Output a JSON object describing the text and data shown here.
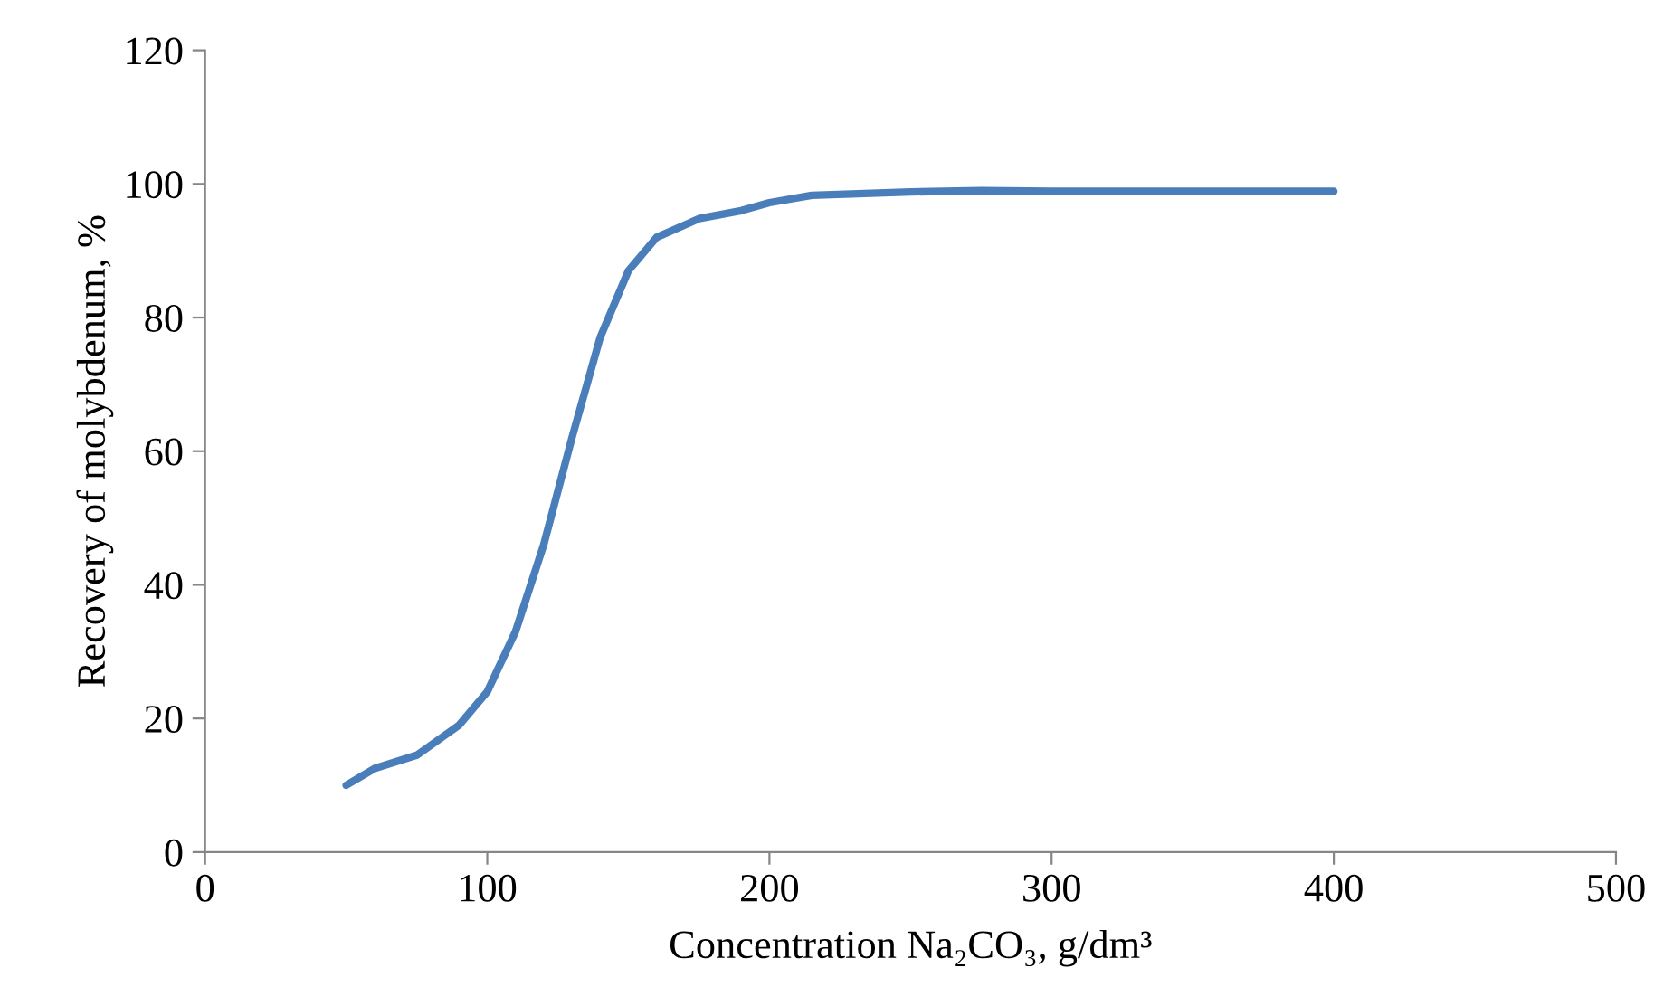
{
  "chart_data": {
    "type": "line",
    "xlabel": "Concentration Na₂CO₃, g/dm³",
    "ylabel": "Recovery of molybdenum, %",
    "series": [
      {
        "color": "#4a7ebb",
        "x": [
          50,
          60,
          75,
          90,
          100,
          110,
          120,
          130,
          140,
          150,
          160,
          175,
          190,
          200,
          215,
          250,
          275,
          300,
          350,
          400
        ],
        "values": [
          10,
          12.5,
          14.5,
          19,
          24,
          33,
          46,
          62,
          77,
          87,
          92,
          94.8,
          96,
          97.2,
          98.3,
          98.8,
          99,
          98.9,
          98.9,
          98.9
        ]
      }
    ],
    "xlim": [
      0,
      500
    ],
    "xticks": [
      0,
      100,
      200,
      300,
      400,
      500
    ],
    "ylim": [
      0,
      120
    ],
    "yticks": [
      0,
      20,
      40,
      60,
      80,
      100,
      120
    ],
    "grid": false,
    "marker": "none",
    "line_style": "solid"
  }
}
